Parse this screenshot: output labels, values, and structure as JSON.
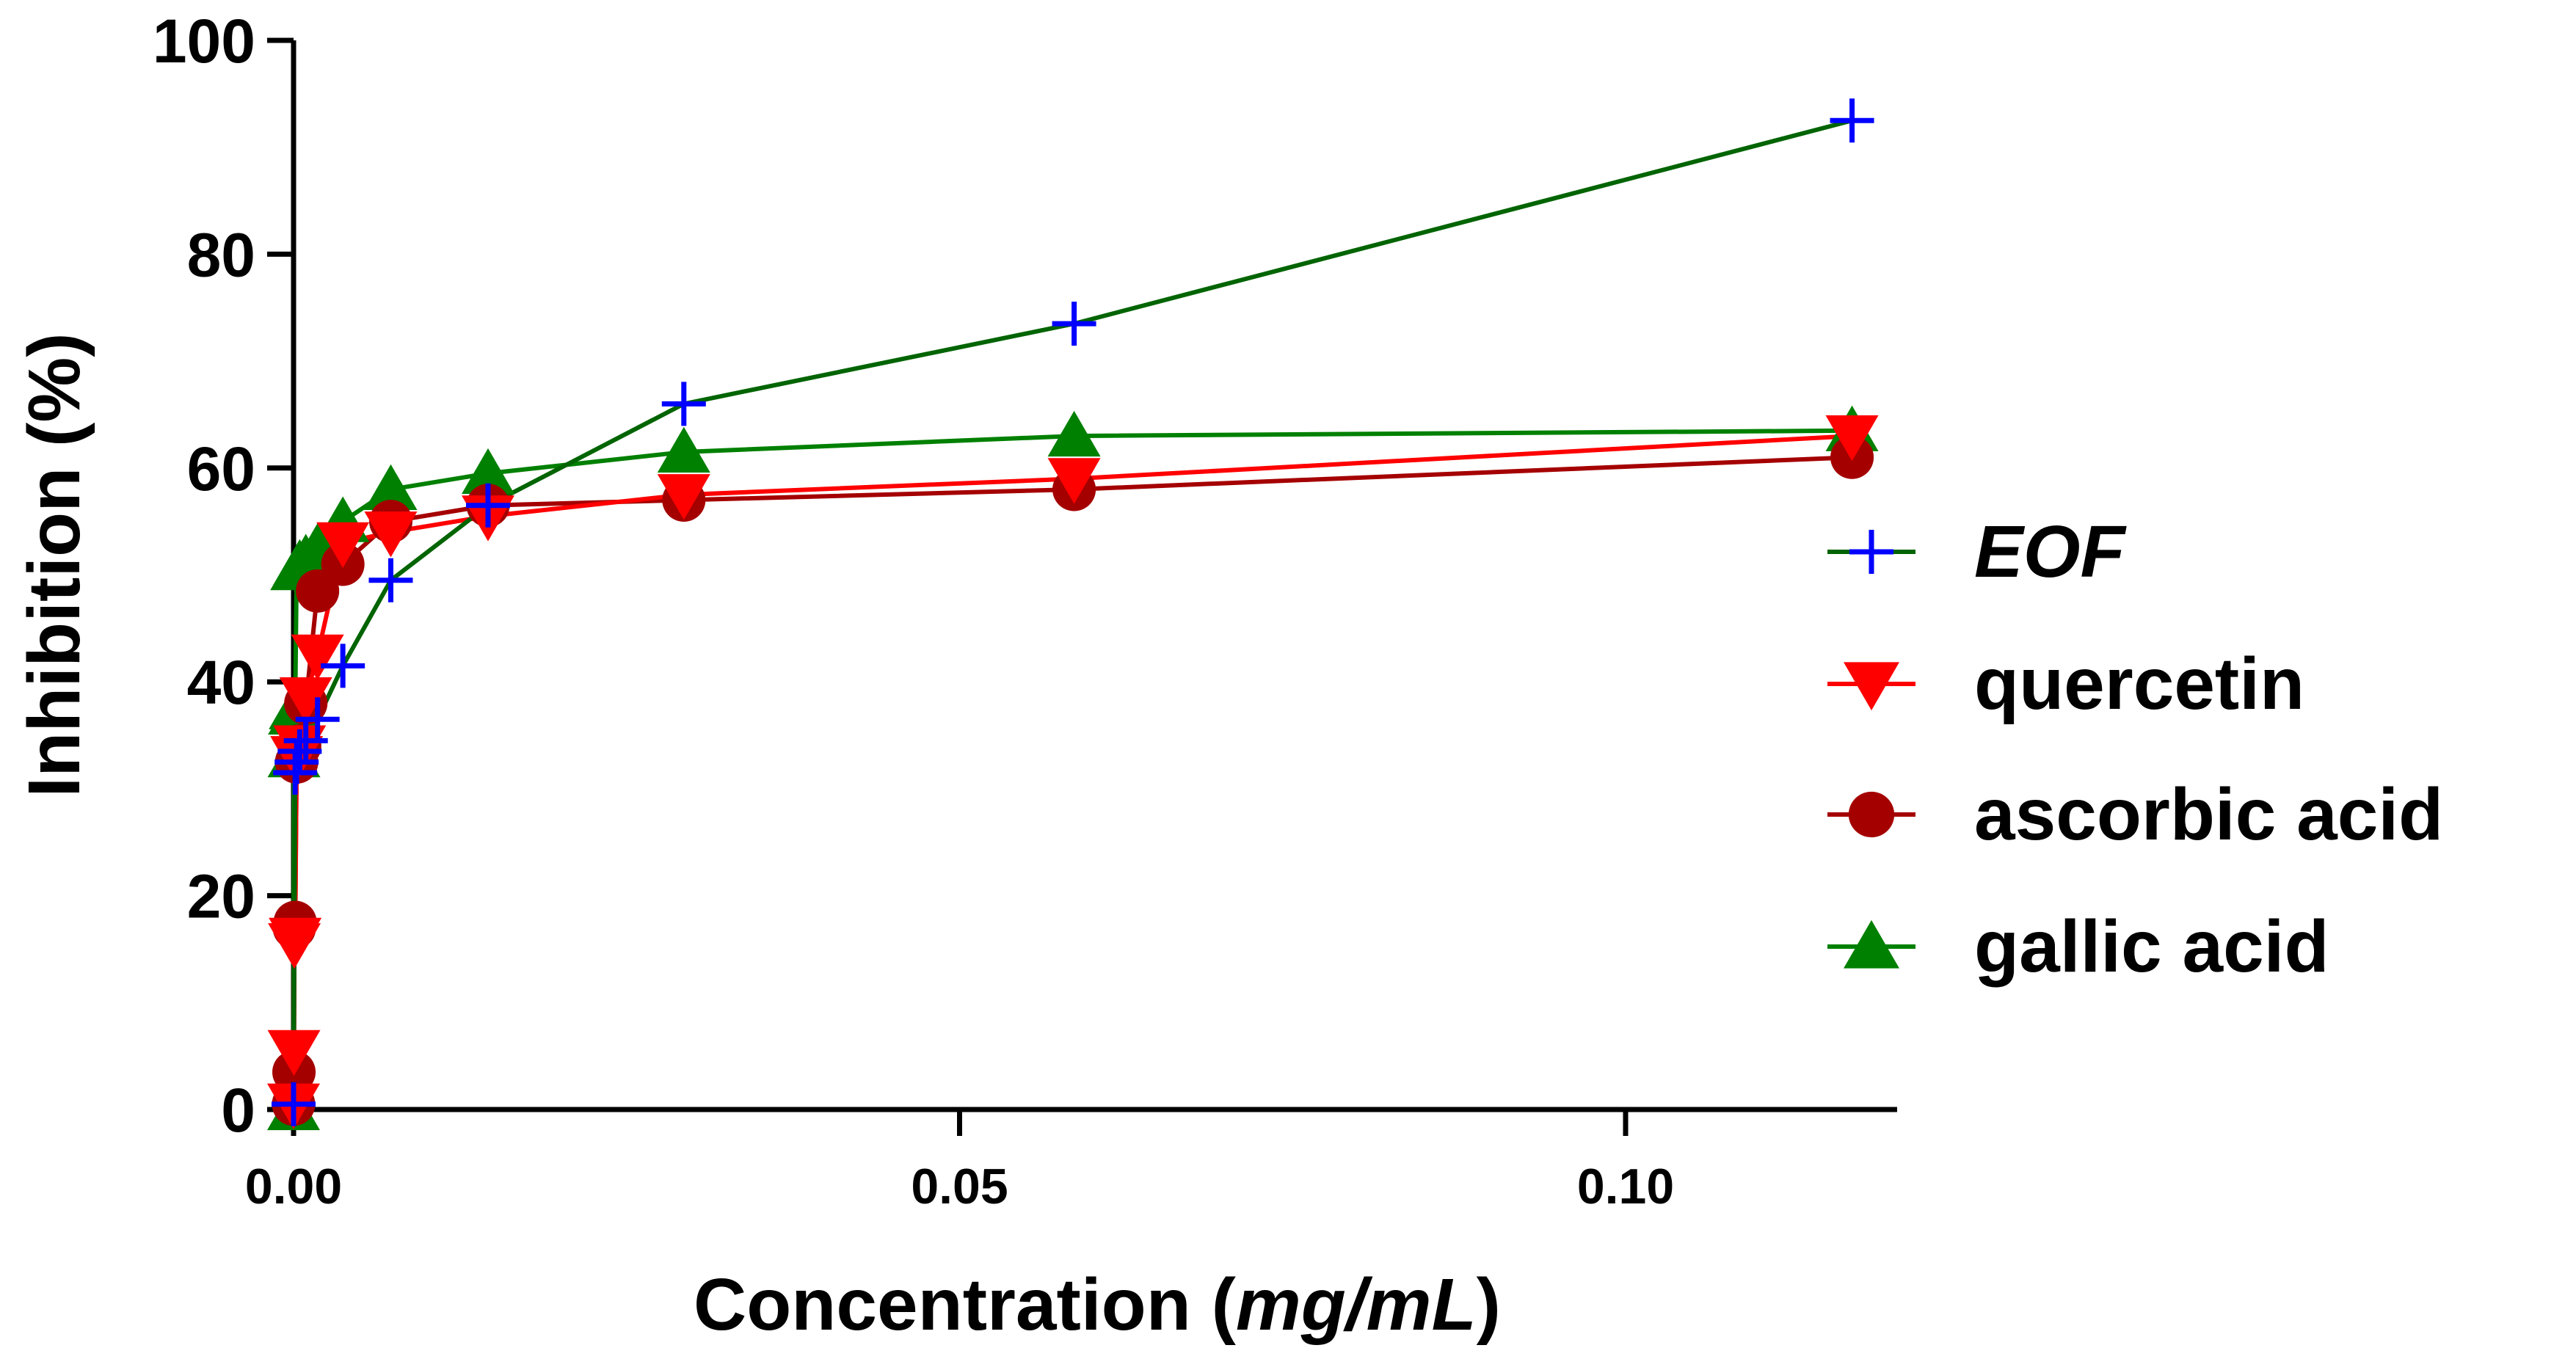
{
  "chart_data": {
    "type": "line",
    "title": "",
    "xlabel_prefix": "Concentration (",
    "xlabel_unit": "mg/mL",
    "xlabel_suffix": ")",
    "ylabel": "Inhibition (%)",
    "xlim": [
      0,
      0.12
    ],
    "ylim": [
      0,
      100
    ],
    "x_ticks": [
      0.0,
      0.05,
      0.1
    ],
    "x_tick_labels": [
      "0.00",
      "0.05",
      "0.10"
    ],
    "y_ticks": [
      0,
      20,
      40,
      60,
      80,
      100
    ],
    "y_tick_labels": [
      "0",
      "20",
      "40",
      "60",
      "80",
      "100"
    ],
    "grid": false,
    "legend_position": "right",
    "series": [
      {
        "name": "EOF",
        "italic": true,
        "marker": "plus",
        "marker_color": "#0000ff",
        "line_color": "#006400",
        "x": [
          0.0,
          0.00012,
          0.00023,
          0.00046,
          0.00092,
          0.0018,
          0.0037,
          0.0073,
          0.0146,
          0.0293,
          0.0586,
          0.117
        ],
        "y": [
          0.5,
          31.5,
          32.5,
          33.5,
          34.5,
          36.5,
          41.5,
          49.5,
          56.5,
          66.0,
          73.5,
          92.5
        ]
      },
      {
        "name": "quercetin",
        "italic": false,
        "marker": "triangle-down",
        "marker_color": "#ff0000",
        "line_color": "#ff0000",
        "x": [
          0.0,
          3e-05,
          6e-05,
          0.00012,
          0.00023,
          0.00046,
          0.00092,
          0.0018,
          0.0037,
          0.0073,
          0.0146,
          0.0293,
          0.0586,
          0.117
        ],
        "y": [
          0.5,
          5.5,
          15.5,
          16.0,
          33.0,
          34.0,
          38.5,
          42.5,
          53.0,
          54.0,
          55.5,
          57.5,
          59.0,
          63.0
        ]
      },
      {
        "name": "ascorbic acid",
        "italic": false,
        "marker": "circle",
        "marker_color": "#a50000",
        "line_color": "#a50000",
        "x": [
          0.0,
          3e-05,
          6e-05,
          0.00012,
          0.00023,
          0.00046,
          0.00092,
          0.0018,
          0.0037,
          0.0073,
          0.0146,
          0.0293,
          0.0586,
          0.117
        ],
        "y": [
          0.5,
          3.5,
          17.0,
          17.5,
          32.5,
          34.0,
          38.0,
          48.5,
          51.0,
          55.0,
          56.5,
          57.0,
          58.0,
          61.0
        ]
      },
      {
        "name": "gallic acid",
        "italic": false,
        "marker": "triangle-up",
        "marker_color": "#008000",
        "line_color": "#008000",
        "x": [
          0.0,
          3e-05,
          6e-05,
          0.00012,
          0.00023,
          0.00046,
          0.00092,
          0.0018,
          0.0037,
          0.0073,
          0.0146,
          0.0293,
          0.0586,
          0.117
        ],
        "y": [
          0.0,
          33.0,
          37.0,
          37.5,
          50.5,
          51.0,
          51.5,
          52.5,
          55.0,
          58.0,
          59.5,
          61.5,
          63.0,
          63.5
        ]
      }
    ]
  }
}
